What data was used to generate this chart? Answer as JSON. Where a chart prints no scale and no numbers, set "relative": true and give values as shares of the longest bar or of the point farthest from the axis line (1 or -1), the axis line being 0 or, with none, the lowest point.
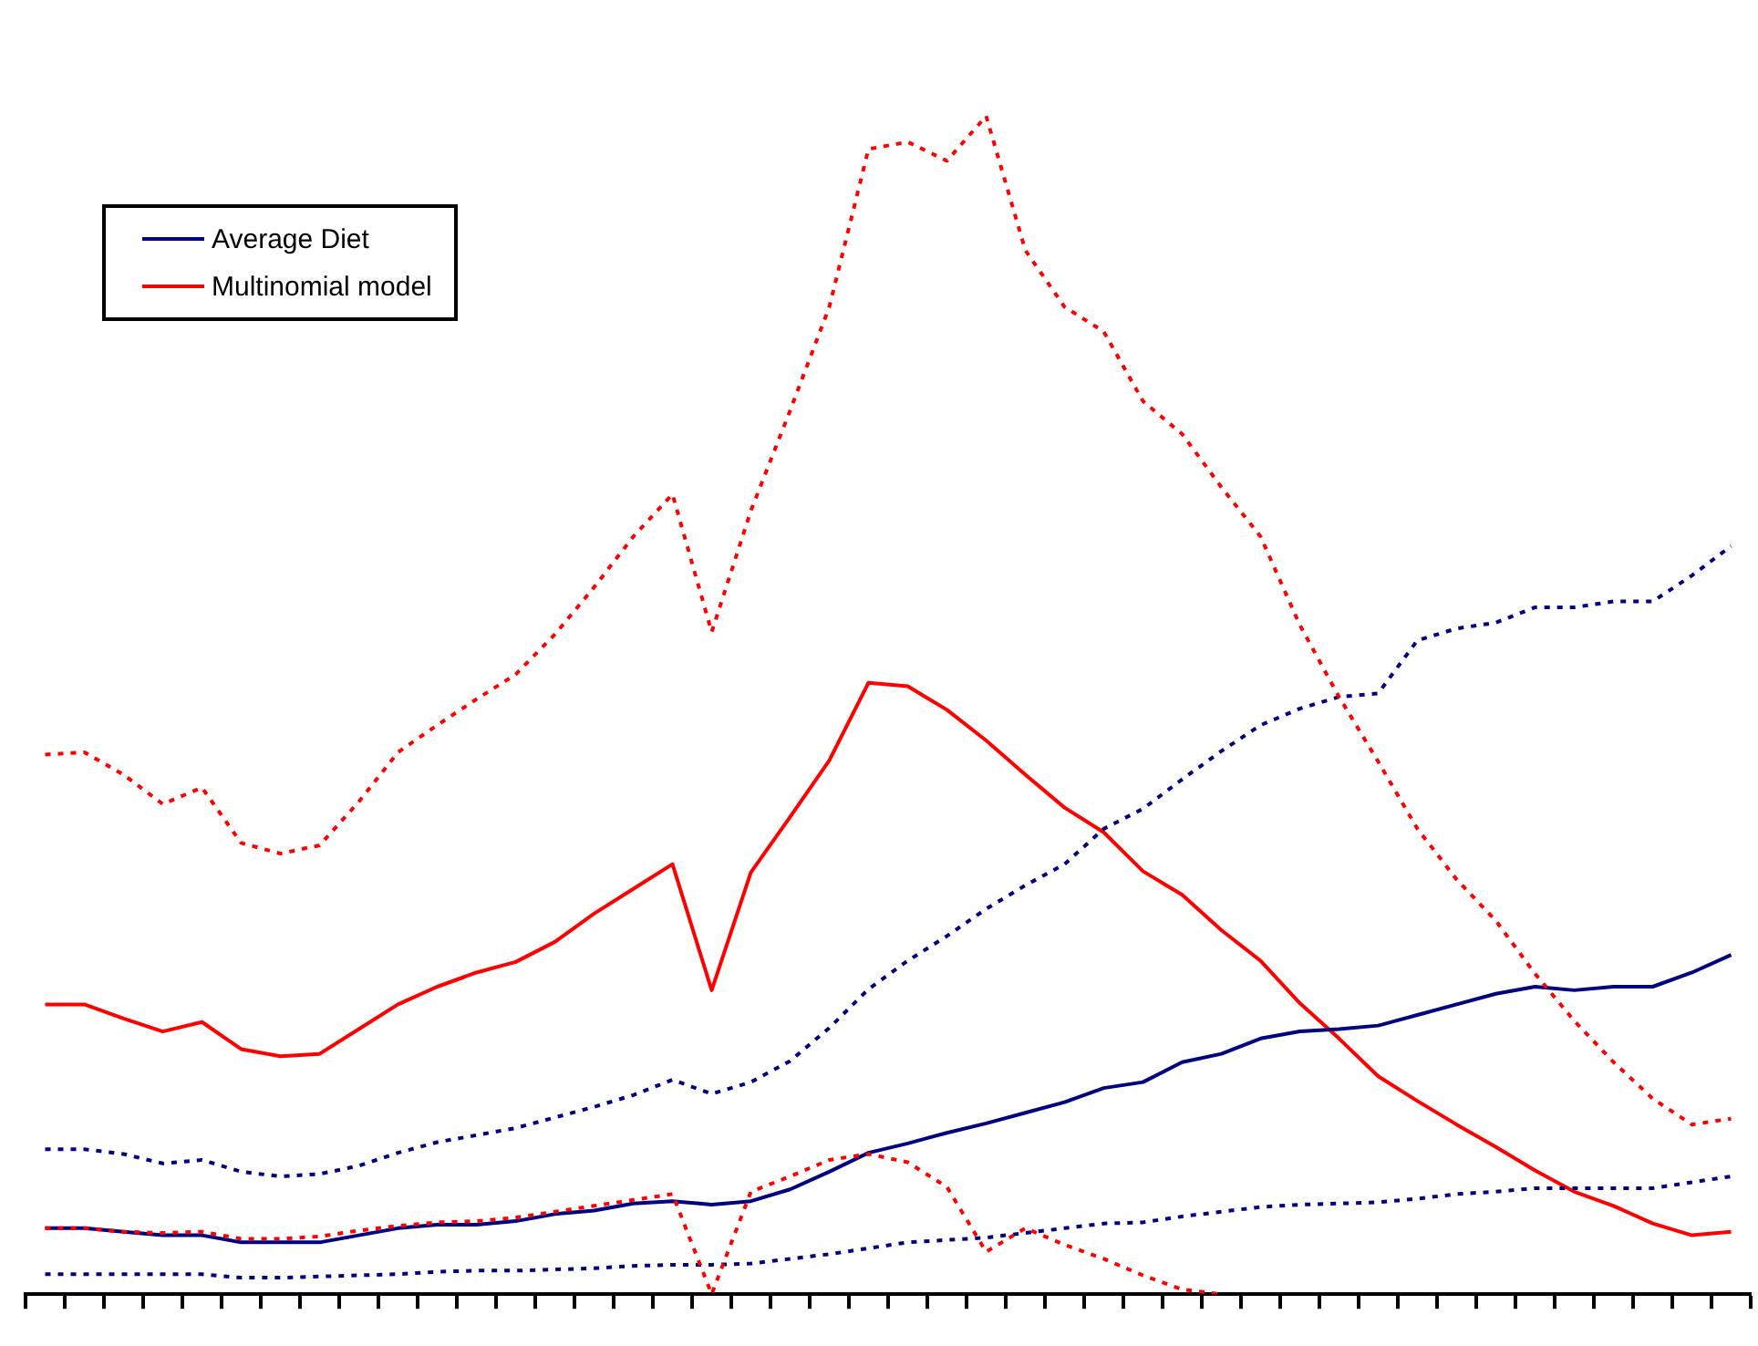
{
  "chart_data": {
    "type": "line",
    "relative": true,
    "legend": "top left",
    "grid": false,
    "marker": "none",
    "categories": [
      null,
      null,
      null,
      null,
      null,
      null,
      null,
      null,
      null,
      null,
      null,
      null,
      null,
      null,
      null,
      null,
      null,
      null,
      null,
      null,
      null,
      null,
      null,
      null,
      null,
      null,
      null,
      null,
      null,
      null,
      null,
      null,
      null,
      null,
      null,
      null,
      null,
      null,
      null,
      null,
      null,
      null,
      null,
      null
    ],
    "series": [
      {
        "name": "Average Diet",
        "color": "#000080",
        "line_style": "solid",
        "values": [
          0.056,
          0.056,
          0.053,
          0.05,
          0.05,
          0.044,
          0.044,
          0.044,
          0.05,
          0.056,
          0.059,
          0.059,
          0.062,
          0.068,
          0.071,
          0.077,
          0.079,
          0.076,
          0.079,
          0.089,
          0.104,
          0.12,
          0.128,
          0.137,
          0.145,
          0.154,
          0.163,
          0.175,
          0.18,
          0.197,
          0.204,
          0.217,
          0.223,
          0.225,
          0.228,
          0.237,
          0.246,
          0.255,
          0.261,
          0.258,
          0.261,
          0.261,
          0.273,
          0.288
        ]
      },
      {
        "name": "Multinomial model",
        "color": "#ff0000",
        "line_style": "solid",
        "values": [
          0.246,
          0.246,
          0.234,
          0.223,
          0.231,
          0.208,
          0.202,
          0.204,
          0.225,
          0.246,
          0.261,
          0.273,
          0.282,
          0.299,
          0.323,
          0.344,
          0.365,
          0.258,
          0.358,
          0.405,
          0.453,
          0.519,
          0.516,
          0.496,
          0.47,
          0.441,
          0.413,
          0.392,
          0.359,
          0.339,
          0.309,
          0.283,
          0.247,
          0.217,
          0.185,
          0.164,
          0.144,
          0.125,
          0.105,
          0.087,
          0.075,
          0.06,
          0.05,
          0.053
        ]
      },
      {
        "color": "#ff0000",
        "line_style": "dotted",
        "values": [
          0.458,
          0.46,
          0.441,
          0.416,
          0.43,
          0.383,
          0.374,
          0.381,
          0.418,
          0.46,
          0.483,
          0.505,
          0.526,
          0.56,
          0.6,
          0.643,
          0.679,
          0.562,
          0.665,
          0.75,
          0.838,
          0.972,
          0.978,
          0.962,
          1,
          0.886,
          0.838,
          0.817,
          0.758,
          0.73,
          0.685,
          0.643,
          0.568,
          0.507,
          0.452,
          0.395,
          0.352,
          0.317,
          0.272,
          0.232,
          0.197,
          0.166,
          0.144,
          0.149
        ]
      },
      {
        "color": "#ff0000",
        "line_style": "dotted",
        "values": [
          0.056,
          0.056,
          0.053,
          0.052,
          0.053,
          0.047,
          0.047,
          0.049,
          0.054,
          0.058,
          0.061,
          0.062,
          0.065,
          0.07,
          0.075,
          0.08,
          0.085,
          0,
          0.087,
          0.1,
          0.114,
          0.119,
          0.112,
          0.091,
          0.036,
          0.056,
          0.042,
          0.03,
          0.016,
          0.004,
          0,
          null,
          null,
          null,
          null,
          null,
          null,
          null,
          null,
          null,
          null,
          null,
          null,
          null
        ]
      },
      {
        "color": "#000080",
        "line_style": "dotted",
        "values": [
          0.123,
          0.123,
          0.119,
          0.111,
          0.114,
          0.104,
          0.1,
          0.102,
          0.109,
          0.12,
          0.129,
          0.135,
          0.141,
          0.15,
          0.159,
          0.169,
          0.182,
          0.17,
          0.18,
          0.198,
          0.226,
          0.259,
          0.283,
          0.304,
          0.327,
          0.347,
          0.365,
          0.395,
          0.412,
          0.437,
          0.461,
          0.483,
          0.497,
          0.507,
          0.51,
          0.555,
          0.565,
          0.57,
          0.583,
          0.583,
          0.588,
          0.588,
          0.61,
          0.635
        ]
      },
      {
        "color": "#000080",
        "line_style": "dotted",
        "values": [
          0.017,
          0.017,
          0.017,
          0.017,
          0.017,
          0.014,
          0.014,
          0.015,
          0.016,
          0.017,
          0.019,
          0.02,
          0.02,
          0.021,
          0.022,
          0.024,
          0.025,
          0.025,
          0.026,
          0.03,
          0.034,
          0.039,
          0.044,
          0.046,
          0.048,
          0.052,
          0.056,
          0.06,
          0.061,
          0.066,
          0.07,
          0.074,
          0.076,
          0.077,
          0.078,
          0.081,
          0.085,
          0.087,
          0.09,
          0.09,
          0.09,
          0.09,
          0.095,
          0.1
        ]
      }
    ]
  }
}
